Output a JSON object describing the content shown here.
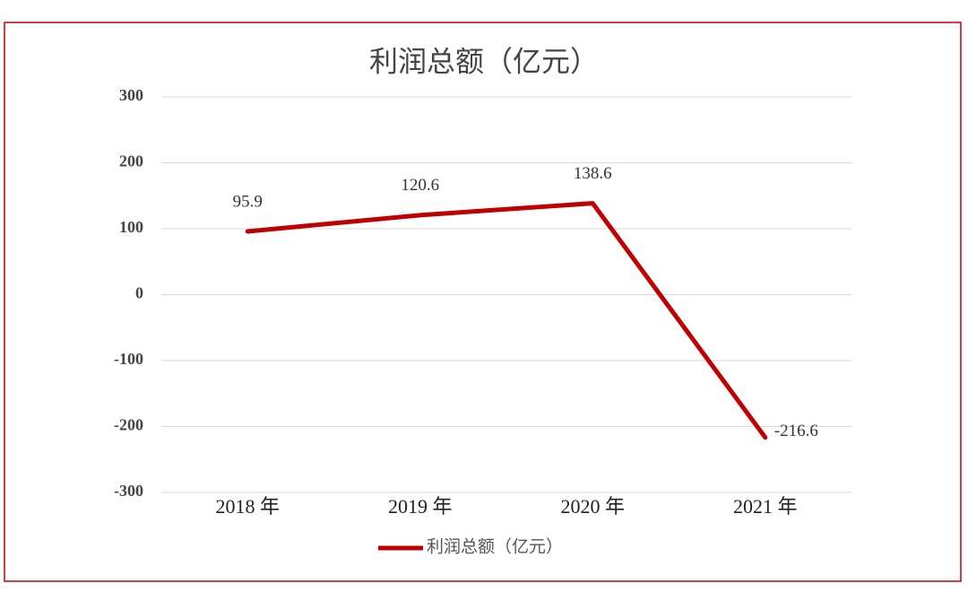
{
  "chart_data": {
    "type": "line",
    "title": "利润总额（亿元）",
    "categories": [
      "2018 年",
      "2019 年",
      "2020 年",
      "2021 年"
    ],
    "series": [
      {
        "name": "利润总额（亿元）",
        "color": "#c00000",
        "values": [
          95.9,
          120.6,
          138.6,
          -216.6
        ]
      }
    ],
    "ylim": [
      -300,
      300
    ],
    "yticks": [
      -300,
      -200,
      -100,
      0,
      100,
      200,
      300
    ],
    "grid": true,
    "legend": "bottom"
  }
}
